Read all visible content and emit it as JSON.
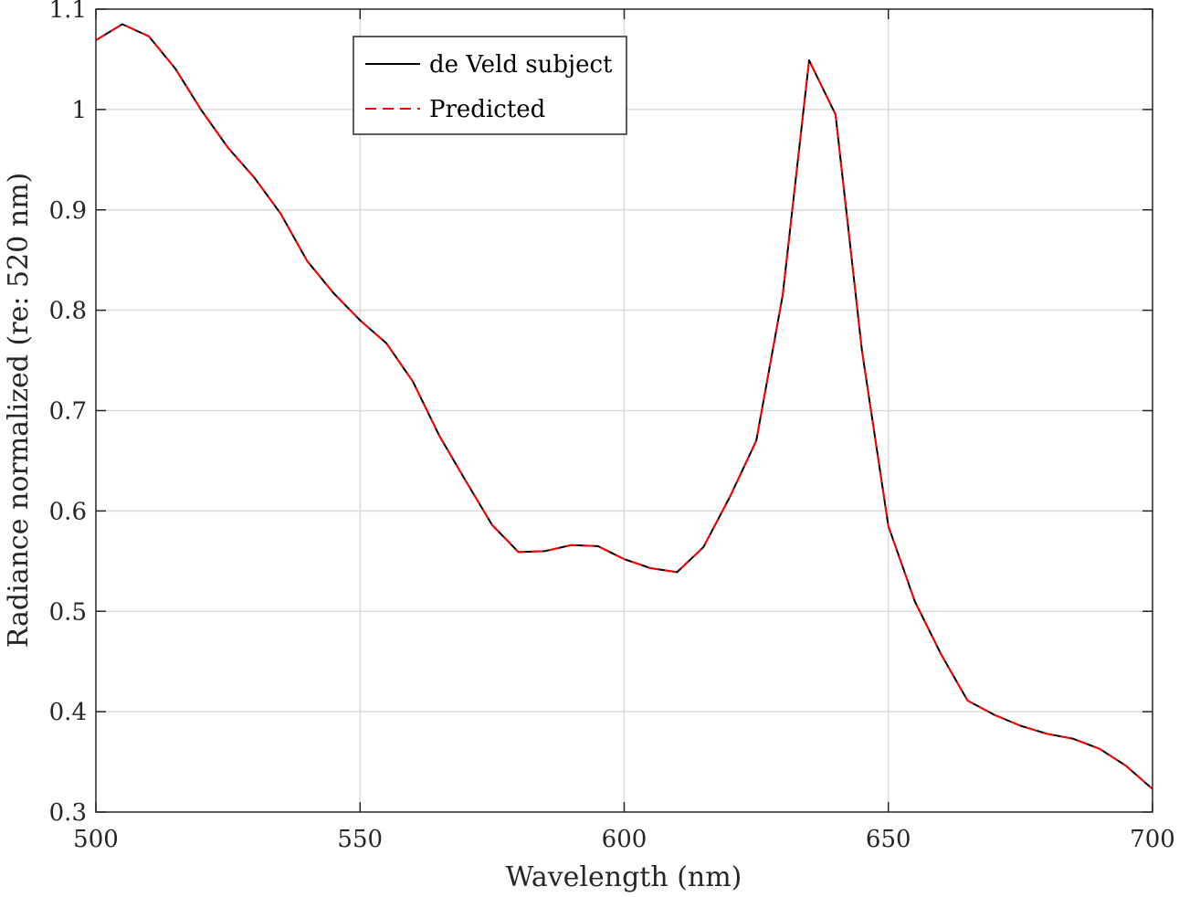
{
  "chart_data": {
    "type": "line",
    "xlabel": "Wavelength (nm)",
    "ylabel": "Radiance normalized (re: 520 nm)",
    "xlim": [
      500,
      700
    ],
    "ylim": [
      0.3,
      1.1
    ],
    "xticks": [
      500,
      550,
      600,
      650,
      700
    ],
    "yticks": [
      0.3,
      0.4,
      0.5,
      0.6,
      0.7,
      0.8,
      0.9,
      1.0,
      1.1
    ],
    "xtick_labels": [
      "500",
      "550",
      "600",
      "650",
      "700"
    ],
    "ytick_labels": [
      "0.3",
      "0.4",
      "0.5",
      "0.6",
      "0.7",
      "0.8",
      "0.9",
      "1",
      "1.1"
    ],
    "grid": true,
    "legend_position": "top-center",
    "x": [
      500,
      505,
      510,
      515,
      520,
      525,
      530,
      535,
      540,
      545,
      550,
      555,
      560,
      565,
      570,
      575,
      580,
      585,
      590,
      595,
      600,
      605,
      610,
      615,
      620,
      625,
      630,
      635,
      640,
      645,
      650,
      655,
      660,
      665,
      670,
      675,
      680,
      685,
      690,
      695,
      700
    ],
    "series": [
      {
        "name": "de Veld subject",
        "color": "#000000",
        "style": "solid",
        "values": [
          1.069,
          1.085,
          1.073,
          1.041,
          0.999,
          0.962,
          0.932,
          0.896,
          0.849,
          0.817,
          0.79,
          0.767,
          0.729,
          0.675,
          0.63,
          0.586,
          0.559,
          0.56,
          0.566,
          0.565,
          0.552,
          0.543,
          0.539,
          0.564,
          0.614,
          0.67,
          0.815,
          1.049,
          0.995,
          0.76,
          0.585,
          0.51,
          0.457,
          0.411,
          0.397,
          0.386,
          0.378,
          0.373,
          0.363,
          0.346,
          0.323
        ]
      },
      {
        "name": "Predicted",
        "color": "#ff0000",
        "style": "dashed",
        "values": [
          1.069,
          1.085,
          1.073,
          1.041,
          0.999,
          0.962,
          0.932,
          0.896,
          0.849,
          0.817,
          0.79,
          0.767,
          0.729,
          0.675,
          0.63,
          0.586,
          0.559,
          0.56,
          0.566,
          0.565,
          0.552,
          0.543,
          0.539,
          0.564,
          0.614,
          0.67,
          0.815,
          1.049,
          0.995,
          0.76,
          0.585,
          0.51,
          0.457,
          0.411,
          0.397,
          0.386,
          0.378,
          0.373,
          0.363,
          0.346,
          0.323
        ]
      }
    ]
  }
}
